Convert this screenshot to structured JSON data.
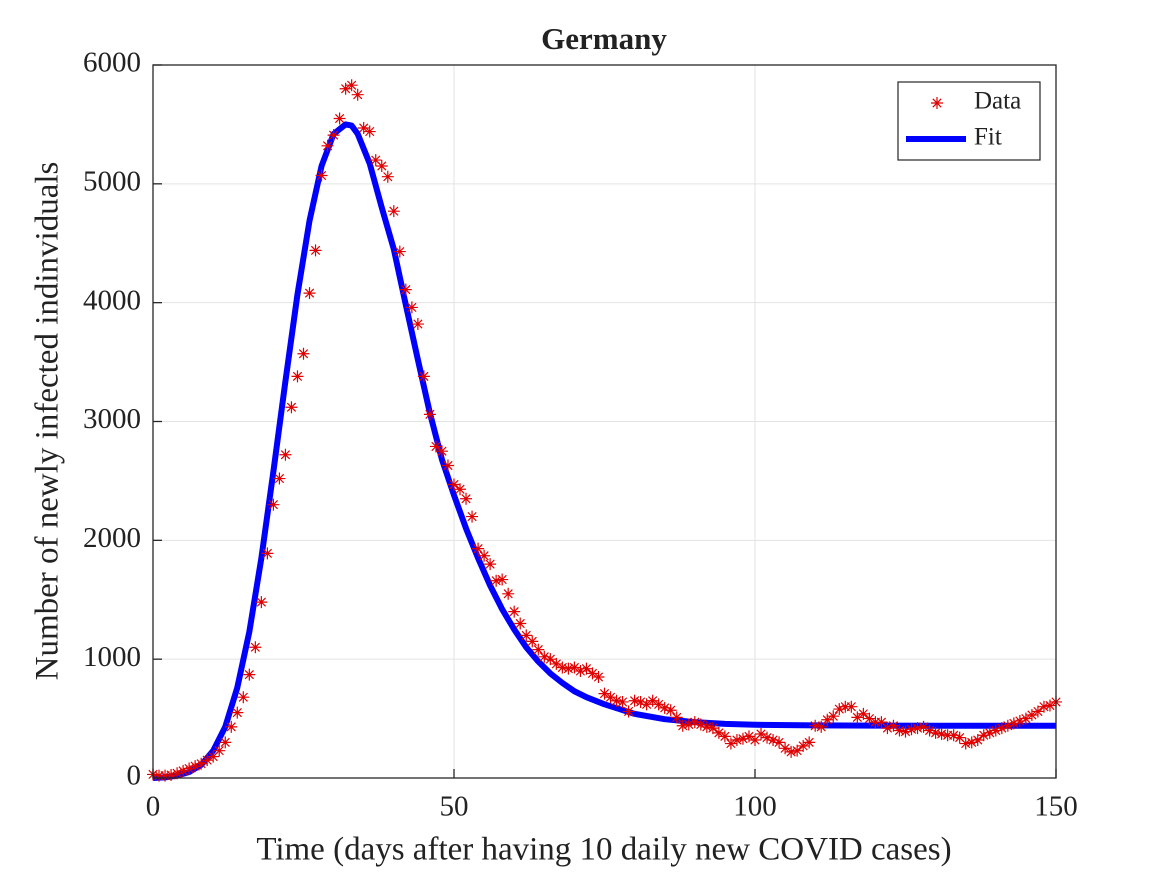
{
  "chart_data": {
    "type": "line",
    "title": "Germany",
    "x_label": "Time (days after having 10 daily new COVID cases)",
    "y_label": "Number of newly infected indinviduals",
    "xlim": [
      0,
      150
    ],
    "xticks": [
      0,
      50,
      100,
      150
    ],
    "ylim": [
      0,
      6000
    ],
    "yticks": [
      0,
      1000,
      2000,
      3000,
      4000,
      5000,
      6000
    ],
    "grid": true,
    "legend": "northeast",
    "series": [
      {
        "name": "Data",
        "mode": "markers",
        "color": "#e00000",
        "x": [
          0,
          1,
          2,
          3,
          4,
          5,
          6,
          7,
          8,
          9,
          10,
          11,
          12,
          13,
          14,
          15,
          16,
          17,
          18,
          19,
          20,
          21,
          22,
          23,
          24,
          25,
          26,
          27,
          28,
          29,
          30,
          31,
          32,
          33,
          34,
          35,
          36,
          37,
          38,
          39,
          40,
          41,
          42,
          43,
          44,
          45,
          46,
          47,
          48,
          49,
          50,
          51,
          52,
          53,
          54,
          55,
          56,
          57,
          58,
          59,
          60,
          61,
          62,
          63,
          64,
          65,
          66,
          67,
          68,
          69,
          70,
          71,
          72,
          73,
          74,
          75,
          76,
          77,
          78,
          79,
          80,
          81,
          82,
          83,
          84,
          85,
          86,
          87,
          88,
          89,
          90,
          91,
          92,
          93,
          94,
          95,
          96,
          97,
          98,
          99,
          100,
          101,
          102,
          103,
          104,
          105,
          106,
          107,
          108,
          109,
          110,
          111,
          112,
          113,
          114,
          115,
          116,
          117,
          118,
          119,
          120,
          121,
          122,
          123,
          124,
          125,
          126,
          127,
          128,
          129,
          130,
          131,
          132,
          133,
          134,
          135,
          136,
          137,
          138,
          139,
          140,
          141,
          142,
          143,
          144,
          145,
          146,
          147,
          148,
          149,
          150
        ],
        "values": [
          30,
          20,
          20,
          25,
          40,
          60,
          80,
          100,
          120,
          150,
          180,
          230,
          300,
          430,
          550,
          680,
          870,
          1100,
          1480,
          1890,
          2300,
          2520,
          2720,
          3120,
          3380,
          3570,
          4080,
          4440,
          5070,
          5320,
          5410,
          5550,
          5800,
          5830,
          5750,
          5470,
          5440,
          5200,
          5150,
          5060,
          4770,
          4430,
          4110,
          3960,
          3820,
          3380,
          3060,
          2790,
          2750,
          2630,
          2470,
          2430,
          2350,
          2200,
          1930,
          1870,
          1800,
          1660,
          1670,
          1550,
          1400,
          1300,
          1200,
          1150,
          1080,
          1020,
          1000,
          960,
          930,
          920,
          930,
          900,
          920,
          880,
          850,
          710,
          680,
          650,
          640,
          560,
          650,
          640,
          620,
          650,
          620,
          590,
          570,
          510,
          440,
          450,
          470,
          450,
          430,
          420,
          380,
          350,
          290,
          320,
          330,
          350,
          320,
          370,
          340,
          320,
          300,
          250,
          220,
          230,
          270,
          300,
          440,
          430,
          490,
          520,
          580,
          600,
          600,
          510,
          540,
          500,
          470,
          470,
          420,
          440,
          400,
          390,
          410,
          420,
          430,
          400,
          380,
          370,
          360,
          360,
          340,
          290,
          300,
          320,
          360,
          380,
          400,
          420,
          440,
          460,
          480,
          500,
          530,
          560,
          600,
          610,
          640
        ]
      },
      {
        "name": "Fit",
        "mode": "line",
        "color": "#0000ff",
        "x": [
          0,
          2,
          4,
          6,
          8,
          10,
          12,
          14,
          16,
          18,
          20,
          22,
          24,
          26,
          28,
          30,
          32,
          33,
          34,
          36,
          38,
          40,
          42,
          44,
          46,
          48,
          50,
          52,
          54,
          56,
          58,
          60,
          62,
          64,
          66,
          68,
          70,
          72,
          75,
          80,
          85,
          90,
          95,
          100,
          110,
          120,
          130,
          140,
          150
        ],
        "values": [
          0,
          5,
          20,
          50,
          110,
          230,
          430,
          760,
          1230,
          1850,
          2580,
          3340,
          4070,
          4690,
          5150,
          5420,
          5500,
          5490,
          5420,
          5170,
          4800,
          4450,
          3980,
          3520,
          3070,
          2680,
          2380,
          2100,
          1850,
          1620,
          1420,
          1250,
          1100,
          980,
          880,
          800,
          730,
          680,
          620,
          540,
          495,
          470,
          455,
          448,
          443,
          441,
          440,
          440,
          440
        ]
      }
    ]
  }
}
